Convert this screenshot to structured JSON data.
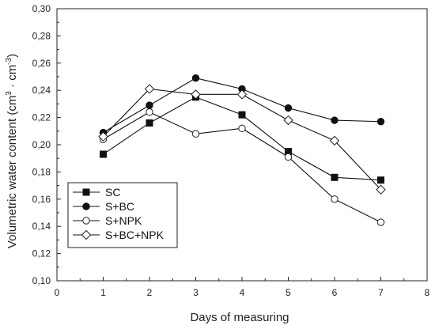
{
  "chart_data": {
    "type": "line",
    "xlabel": "Days of measuring",
    "ylabel_main": "Volumetric water content (cm",
    "ylabel_sup1": "3",
    "ylabel_mid": " · cm",
    "ylabel_sup2": "-3",
    "ylabel_end": ")",
    "xlim": [
      0,
      8
    ],
    "ylim": [
      0.1,
      0.3
    ],
    "x_ticks": [
      0,
      1,
      2,
      3,
      4,
      5,
      6,
      7,
      8
    ],
    "y_ticks": [
      "0,10",
      "0,12",
      "0,14",
      "0,16",
      "0,18",
      "0,20",
      "0,22",
      "0,24",
      "0,26",
      "0,28",
      "0,30"
    ],
    "grid": false,
    "legend_position": "bottom-left",
    "x": [
      1,
      2,
      3,
      4,
      5,
      6,
      7
    ],
    "series": [
      {
        "name": "SC",
        "marker": "filled-square",
        "values": [
          0.193,
          0.216,
          0.235,
          0.222,
          0.195,
          0.176,
          0.174
        ]
      },
      {
        "name": "S+BC",
        "marker": "filled-circle",
        "values": [
          0.209,
          0.229,
          0.249,
          0.241,
          0.227,
          0.218,
          0.217
        ]
      },
      {
        "name": "S+NPK",
        "marker": "open-circle",
        "values": [
          0.204,
          0.224,
          0.208,
          0.212,
          0.191,
          0.16,
          0.143
        ]
      },
      {
        "name": "S+BC+NPK",
        "marker": "open-diamond",
        "values": [
          0.206,
          0.241,
          0.237,
          0.237,
          0.218,
          0.203,
          0.167
        ]
      }
    ]
  }
}
